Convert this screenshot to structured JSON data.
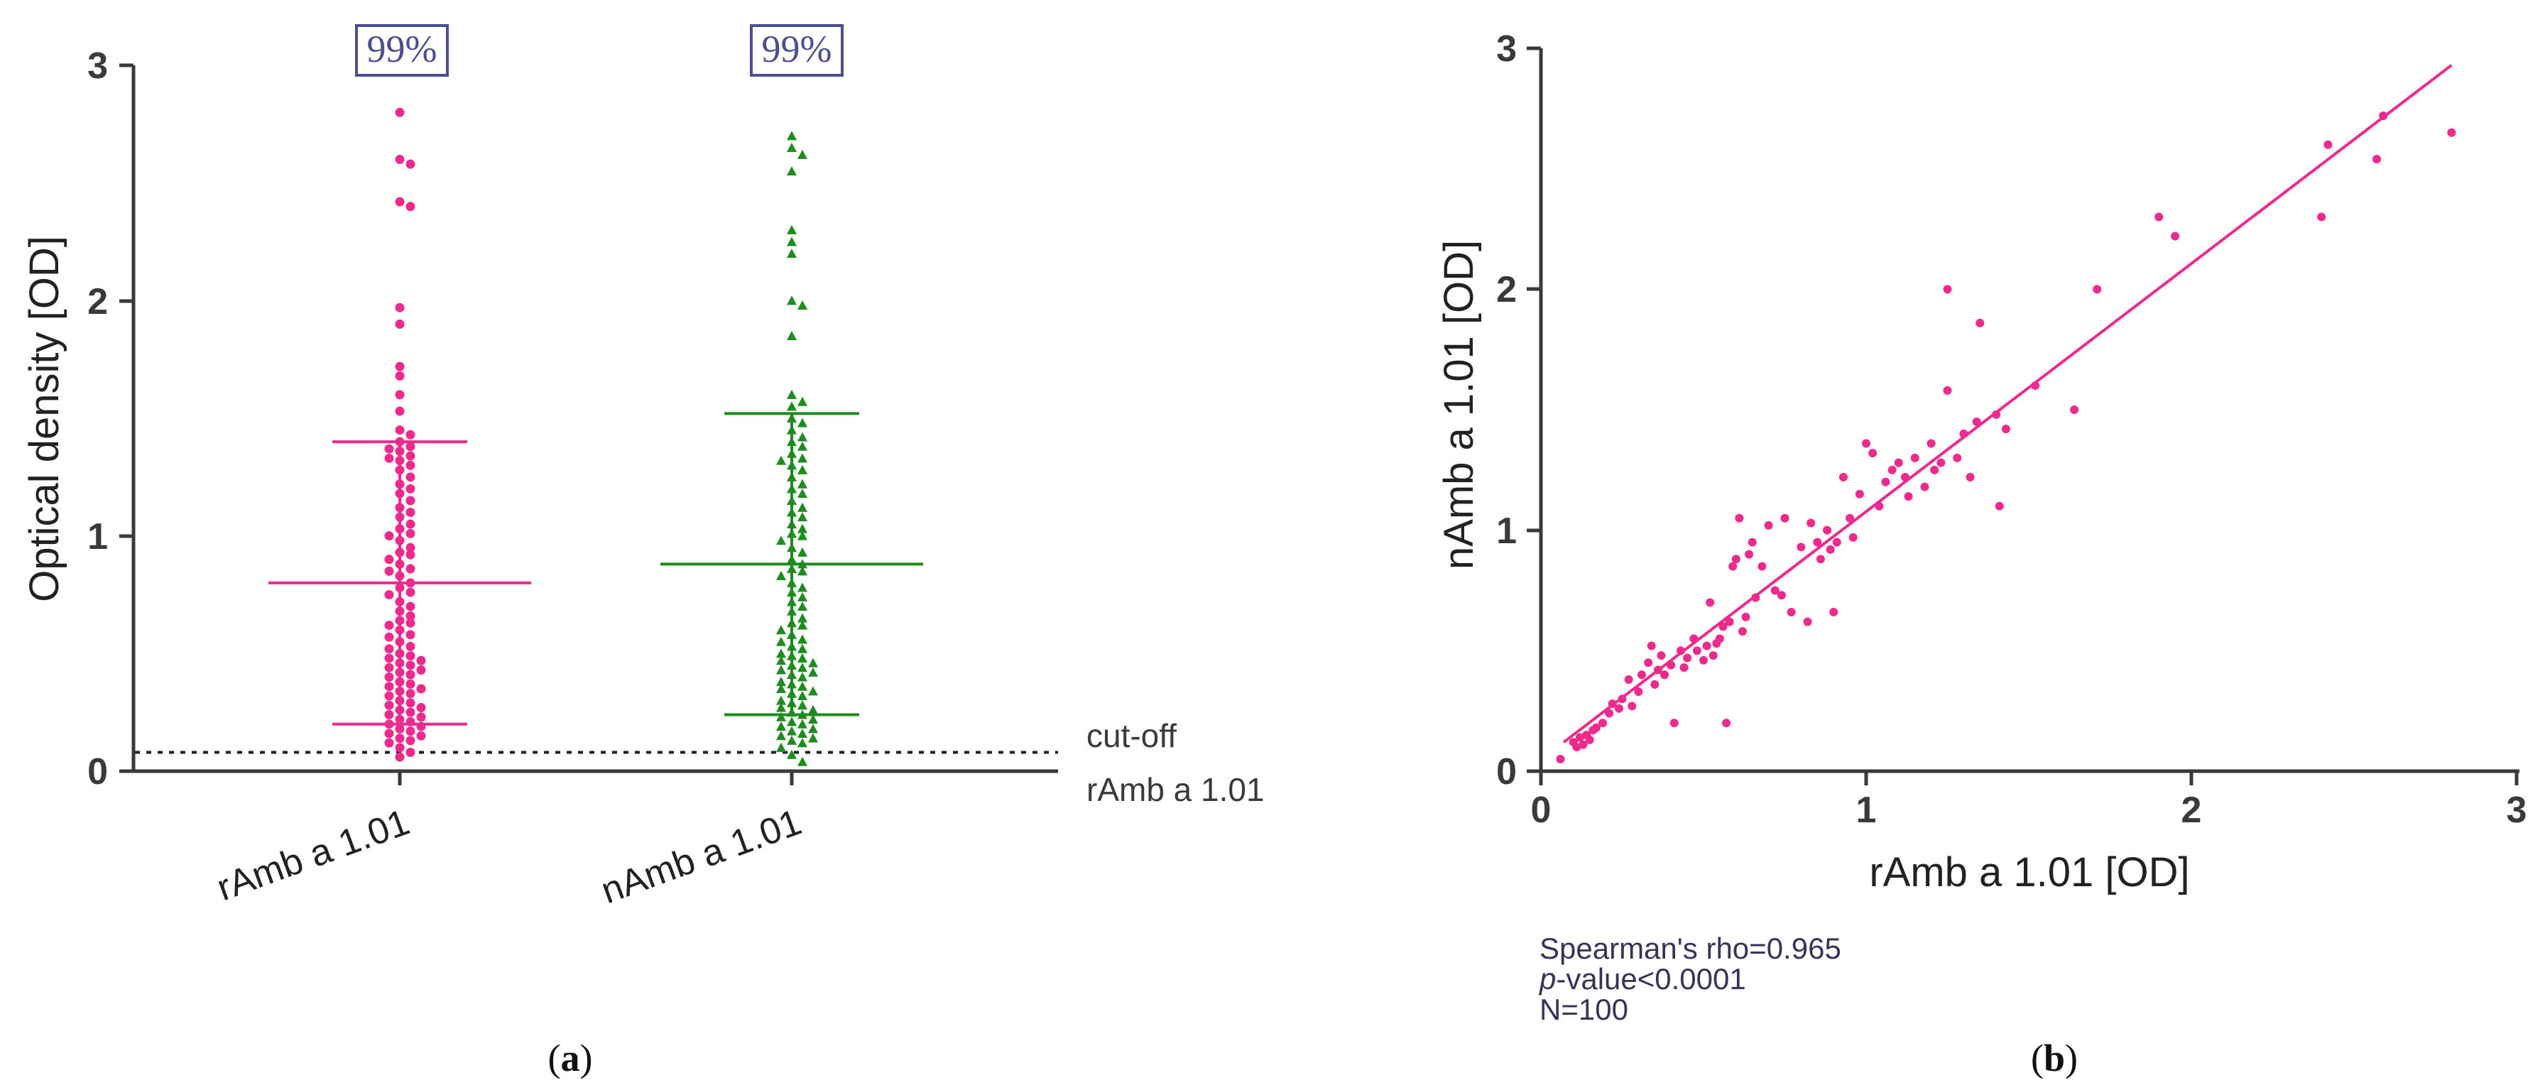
{
  "chart_data": [
    {
      "type": "scatter",
      "subtype": "dot-plot",
      "panel_label": "(a)",
      "panel_letter": "a",
      "ylabel": "Optical density [OD]",
      "ylim": [
        0,
        3
      ],
      "yticks": [
        "0",
        "1",
        "2",
        "3"
      ],
      "cutoff": {
        "value": 0.08,
        "label_line1": "cut-off",
        "label_line2": "rAmb a 1.01"
      },
      "series": [
        {
          "name": "rAmb a 1.01",
          "color": "#ee2a8c",
          "marker": "circle",
          "positive_percent": "99%",
          "mean": 0.8,
          "sd_low": 0.2,
          "sd_high": 1.4,
          "values": [
            2.8,
            2.6,
            2.58,
            2.42,
            2.4,
            1.97,
            1.9,
            1.72,
            1.68,
            1.6,
            1.53,
            1.45,
            1.43,
            1.4,
            1.38,
            1.37,
            1.36,
            1.34,
            1.33,
            1.32,
            1.3,
            1.28,
            1.25,
            1.22,
            1.2,
            1.18,
            1.15,
            1.12,
            1.1,
            1.08,
            1.05,
            1.03,
            1.01,
            1.0,
            0.98,
            0.95,
            0.93,
            0.92,
            0.9,
            0.88,
            0.86,
            0.85,
            0.83,
            0.8,
            0.78,
            0.76,
            0.75,
            0.72,
            0.7,
            0.68,
            0.66,
            0.64,
            0.63,
            0.62,
            0.6,
            0.58,
            0.57,
            0.55,
            0.53,
            0.52,
            0.5,
            0.49,
            0.48,
            0.47,
            0.46,
            0.45,
            0.44,
            0.43,
            0.42,
            0.41,
            0.4,
            0.38,
            0.37,
            0.36,
            0.35,
            0.34,
            0.33,
            0.32,
            0.3,
            0.29,
            0.28,
            0.27,
            0.26,
            0.25,
            0.24,
            0.23,
            0.22,
            0.21,
            0.2,
            0.19,
            0.18,
            0.17,
            0.16,
            0.15,
            0.14,
            0.13,
            0.12,
            0.1,
            0.08,
            0.06
          ]
        },
        {
          "name": "nAmb a 1.01",
          "color": "#1e8c1e",
          "marker": "triangle",
          "positive_percent": "99%",
          "mean": 0.88,
          "sd_low": 0.24,
          "sd_high": 1.52,
          "values": [
            2.7,
            2.65,
            2.62,
            2.55,
            2.3,
            2.25,
            2.2,
            2.0,
            1.98,
            1.85,
            1.6,
            1.57,
            1.55,
            1.5,
            1.48,
            1.45,
            1.42,
            1.4,
            1.38,
            1.35,
            1.33,
            1.32,
            1.3,
            1.28,
            1.25,
            1.22,
            1.2,
            1.18,
            1.15,
            1.12,
            1.1,
            1.08,
            1.05,
            1.03,
            1.01,
            1.0,
            0.98,
            0.95,
            0.93,
            0.9,
            0.88,
            0.86,
            0.85,
            0.83,
            0.8,
            0.78,
            0.76,
            0.74,
            0.72,
            0.7,
            0.68,
            0.65,
            0.63,
            0.62,
            0.6,
            0.58,
            0.56,
            0.55,
            0.53,
            0.52,
            0.5,
            0.49,
            0.48,
            0.47,
            0.46,
            0.45,
            0.44,
            0.43,
            0.42,
            0.41,
            0.4,
            0.38,
            0.37,
            0.36,
            0.35,
            0.34,
            0.33,
            0.32,
            0.3,
            0.29,
            0.28,
            0.27,
            0.26,
            0.25,
            0.24,
            0.23,
            0.22,
            0.21,
            0.2,
            0.19,
            0.18,
            0.17,
            0.16,
            0.15,
            0.14,
            0.13,
            0.12,
            0.1,
            0.07,
            0.04
          ]
        }
      ]
    },
    {
      "type": "scatter",
      "panel_label": "(b)",
      "panel_letter": "b",
      "xlabel": "rAmb a 1.01 [OD]",
      "ylabel": "nAmb a 1.01 [OD]",
      "xlim": [
        0,
        3
      ],
      "ylim": [
        0,
        3
      ],
      "xticks": [
        "0",
        "1",
        "2",
        "3"
      ],
      "yticks": [
        "0",
        "1",
        "2",
        "3"
      ],
      "color": "#ee2a8c",
      "fit_line": {
        "x": [
          0.07,
          2.8
        ],
        "y": [
          0.12,
          2.93
        ]
      },
      "stats": {
        "line1": "Spearman's rho=0.965",
        "line2_italic": "p",
        "line2_rest": "-value<0.0001",
        "line3": "N=100"
      },
      "points": [
        [
          0.06,
          0.05
        ],
        [
          0.1,
          0.12
        ],
        [
          0.11,
          0.1
        ],
        [
          0.12,
          0.14
        ],
        [
          0.13,
          0.11
        ],
        [
          0.14,
          0.15
        ],
        [
          0.15,
          0.13
        ],
        [
          0.17,
          0.18
        ],
        [
          0.19,
          0.2
        ],
        [
          0.21,
          0.24
        ],
        [
          0.22,
          0.28
        ],
        [
          0.24,
          0.26
        ],
        [
          0.25,
          0.3
        ],
        [
          0.27,
          0.38
        ],
        [
          0.3,
          0.33
        ],
        [
          0.31,
          0.4
        ],
        [
          0.33,
          0.45
        ],
        [
          0.34,
          0.52
        ],
        [
          0.35,
          0.36
        ],
        [
          0.36,
          0.42
        ],
        [
          0.37,
          0.48
        ],
        [
          0.38,
          0.4
        ],
        [
          0.4,
          0.44
        ],
        [
          0.41,
          0.2
        ],
        [
          0.43,
          0.5
        ],
        [
          0.45,
          0.47
        ],
        [
          0.47,
          0.55
        ],
        [
          0.48,
          0.5
        ],
        [
          0.5,
          0.46
        ],
        [
          0.51,
          0.52
        ],
        [
          0.52,
          0.7
        ],
        [
          0.53,
          0.48
        ],
        [
          0.55,
          0.55
        ],
        [
          0.56,
          0.6
        ],
        [
          0.57,
          0.2
        ],
        [
          0.58,
          0.62
        ],
        [
          0.59,
          0.85
        ],
        [
          0.6,
          0.88
        ],
        [
          0.61,
          1.05
        ],
        [
          0.62,
          0.58
        ],
        [
          0.63,
          0.64
        ],
        [
          0.64,
          0.9
        ],
        [
          0.65,
          0.95
        ],
        [
          0.66,
          0.72
        ],
        [
          0.68,
          0.85
        ],
        [
          0.7,
          1.02
        ],
        [
          0.72,
          0.75
        ],
        [
          0.75,
          1.05
        ],
        [
          0.77,
          0.66
        ],
        [
          0.8,
          0.93
        ],
        [
          0.82,
          0.62
        ],
        [
          0.83,
          1.03
        ],
        [
          0.85,
          0.95
        ],
        [
          0.86,
          0.88
        ],
        [
          0.88,
          1.0
        ],
        [
          0.89,
          0.92
        ],
        [
          0.9,
          0.66
        ],
        [
          0.91,
          0.95
        ],
        [
          0.93,
          1.22
        ],
        [
          0.95,
          1.05
        ],
        [
          0.98,
          1.15
        ],
        [
          1.0,
          1.36
        ],
        [
          1.02,
          1.32
        ],
        [
          1.04,
          1.1
        ],
        [
          1.06,
          1.2
        ],
        [
          1.08,
          1.25
        ],
        [
          1.1,
          1.28
        ],
        [
          1.12,
          1.22
        ],
        [
          1.15,
          1.3
        ],
        [
          1.18,
          1.18
        ],
        [
          1.2,
          1.36
        ],
        [
          1.21,
          1.25
        ],
        [
          1.23,
          1.28
        ],
        [
          1.25,
          1.58
        ],
        [
          1.25,
          2.0
        ],
        [
          1.28,
          1.3
        ],
        [
          1.3,
          1.4
        ],
        [
          1.32,
          1.22
        ],
        [
          1.34,
          1.45
        ],
        [
          1.35,
          1.86
        ],
        [
          1.4,
          1.48
        ],
        [
          1.41,
          1.1
        ],
        [
          1.43,
          1.42
        ],
        [
          1.52,
          1.6
        ],
        [
          1.64,
          1.5
        ],
        [
          1.71,
          2.0
        ],
        [
          1.9,
          2.3
        ],
        [
          1.95,
          2.22
        ],
        [
          2.4,
          2.3
        ],
        [
          2.42,
          2.6
        ],
        [
          2.57,
          2.54
        ],
        [
          2.59,
          2.72
        ],
        [
          2.8,
          2.65
        ],
        [
          0.44,
          0.43
        ],
        [
          0.54,
          0.53
        ],
        [
          0.74,
          0.73
        ],
        [
          0.96,
          0.97
        ],
        [
          1.13,
          1.14
        ],
        [
          0.28,
          0.27
        ],
        [
          0.16,
          0.17
        ]
      ]
    }
  ]
}
